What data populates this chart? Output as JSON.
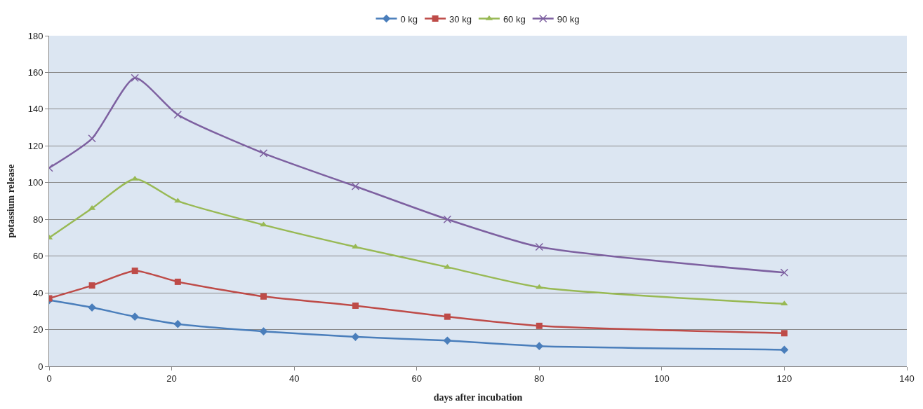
{
  "chart_data": {
    "type": "line",
    "xlabel": "days after incubation",
    "ylabel": "potassium release",
    "x": [
      0,
      7,
      14,
      21,
      35,
      50,
      65,
      80,
      120
    ],
    "series": [
      {
        "name": "0 kg",
        "color": "#4a7ebb",
        "marker": "diamond",
        "values": [
          36,
          32,
          27,
          23,
          19,
          16,
          14,
          11,
          9
        ]
      },
      {
        "name": "30 kg",
        "color": "#be4b48",
        "marker": "square",
        "values": [
          37,
          44,
          52,
          46,
          38,
          33,
          27,
          22,
          18
        ]
      },
      {
        "name": "60 kg",
        "color": "#98b954",
        "marker": "triangle",
        "values": [
          70,
          86,
          102,
          90,
          77,
          65,
          54,
          43,
          34
        ]
      },
      {
        "name": "90 kg",
        "color": "#7d60a0",
        "marker": "cross",
        "values": [
          108,
          124,
          157,
          137,
          116,
          98,
          80,
          65,
          51
        ]
      }
    ],
    "xlim": [
      0,
      140
    ],
    "xticks": [
      0,
      20,
      40,
      60,
      80,
      100,
      120,
      140
    ],
    "ylim": [
      0,
      180
    ],
    "yticks": [
      0,
      20,
      40,
      60,
      80,
      100,
      120,
      140,
      160,
      180
    ],
    "grid": "y",
    "legend": "top",
    "line_style": "solid"
  }
}
